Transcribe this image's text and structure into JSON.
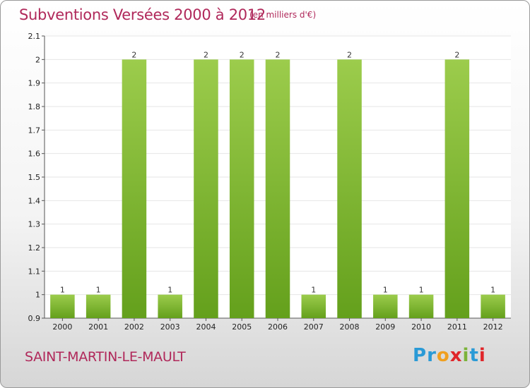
{
  "header": {
    "title": "Subventions Versées 2000 à 2012",
    "unit": "(en milliers d'€)"
  },
  "footer": {
    "commune": "SAINT-MARTIN-LE-MAULT",
    "brand_letters": [
      "P",
      "r",
      "o",
      "x",
      "i",
      "t",
      "i"
    ],
    "brand_colors": [
      "#2a9ad6",
      "#2a9ad6",
      "#f0a020",
      "#e0262a",
      "#7bb33a",
      "#2a9ad6",
      "#e0262a"
    ]
  },
  "colors": {
    "title": "#b0285a",
    "bar_light": "#9ccc4c",
    "bar_dark": "#64a01c",
    "axis": "#555555",
    "grid": "#e6e6e6"
  },
  "chart_data": {
    "type": "bar",
    "title": "Subventions Versées 2000 à 2012",
    "subtitle": "(en milliers d'€)",
    "categories": [
      "2000",
      "2001",
      "2002",
      "2003",
      "2004",
      "2005",
      "2006",
      "2007",
      "2008",
      "2009",
      "2010",
      "2011",
      "2012"
    ],
    "values": [
      1,
      1,
      2,
      1,
      2,
      2,
      2,
      1,
      2,
      1,
      1,
      2,
      1
    ],
    "data_labels": [
      "1",
      "1",
      "2",
      "1",
      "2",
      "2",
      "2",
      "1",
      "2",
      "1",
      "1",
      "2",
      "1"
    ],
    "ylim": [
      0.9,
      2.1
    ],
    "y_ticks": [
      0.9,
      1,
      1.1,
      1.2,
      1.3,
      1.4,
      1.5,
      1.6,
      1.7,
      1.8,
      1.9,
      2,
      2.1
    ],
    "y_tick_labels": [
      "0.9",
      "1",
      "1.1",
      "1.2",
      "1.3",
      "1.4",
      "1.5",
      "1.6",
      "1.7",
      "1.8",
      "1.9",
      "2",
      "2.1"
    ],
    "xlabel": "",
    "ylabel": "",
    "grid": true,
    "legend": "none"
  }
}
